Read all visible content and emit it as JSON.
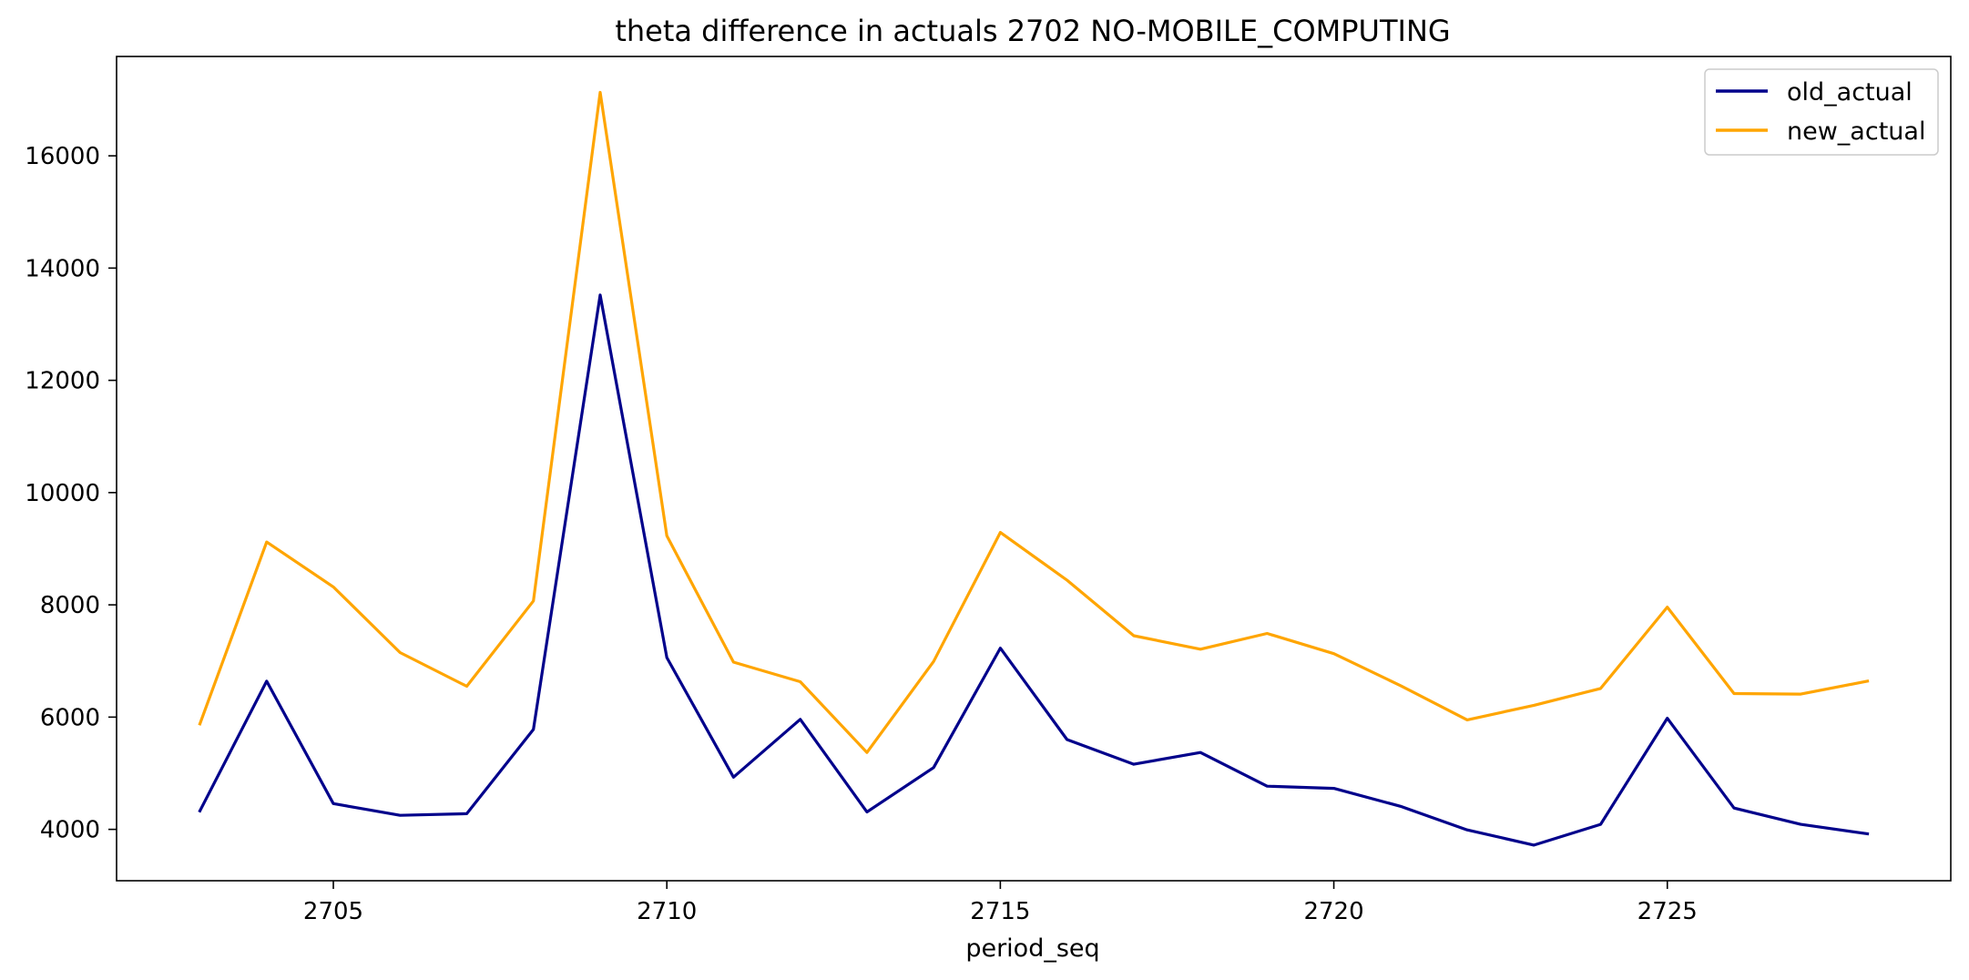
{
  "chart_data": {
    "type": "line",
    "title": "theta difference in actuals 2702 NO-MOBILE_COMPUTING",
    "xlabel": "period_seq",
    "ylabel": "",
    "x": [
      2703,
      2704,
      2705,
      2706,
      2707,
      2708,
      2709,
      2710,
      2711,
      2712,
      2713,
      2714,
      2715,
      2716,
      2717,
      2718,
      2719,
      2720,
      2721,
      2722,
      2723,
      2724,
      2725,
      2726,
      2727,
      2728
    ],
    "series": [
      {
        "name": "old_actual",
        "color": "#00008b",
        "values": [
          4330,
          6640,
          4460,
          4250,
          4280,
          5780,
          13520,
          7060,
          4930,
          5960,
          4310,
          5100,
          7230,
          5600,
          5160,
          5370,
          4770,
          4730,
          4410,
          3990,
          3720,
          4090,
          5980,
          4380,
          4090,
          3920
        ]
      },
      {
        "name": "new_actual",
        "color": "#ffa500",
        "values": [
          5880,
          9120,
          8320,
          7150,
          6550,
          8070,
          17130,
          9230,
          6980,
          6630,
          5370,
          6990,
          9290,
          8440,
          7450,
          7210,
          7490,
          7130,
          6560,
          5950,
          6210,
          6510,
          7960,
          6420,
          6410,
          6640
        ]
      }
    ],
    "xlim": [
      2701.75,
      2729.25
    ],
    "ylim": [
      3085,
      17770
    ],
    "xticks": [
      2705,
      2710,
      2715,
      2720,
      2725
    ],
    "yticks": [
      4000,
      6000,
      8000,
      10000,
      12000,
      14000,
      16000
    ],
    "legend_position": "top-right",
    "grid": false
  }
}
